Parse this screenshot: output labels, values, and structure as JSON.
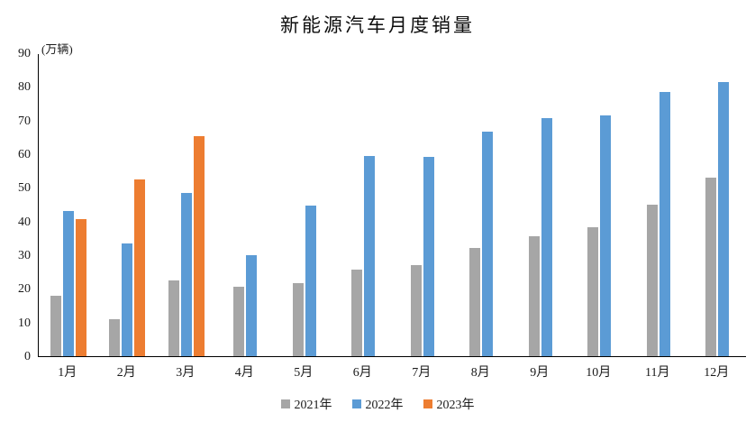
{
  "chart_data": {
    "type": "bar",
    "title": "新能源汽车月度销量",
    "unit_label": "(万辆)",
    "categories": [
      "1月",
      "2月",
      "3月",
      "4月",
      "5月",
      "6月",
      "7月",
      "8月",
      "9月",
      "10月",
      "11月",
      "12月"
    ],
    "series": [
      {
        "name": "2021年",
        "color": "#A6A6A6",
        "values": [
          17.9,
          11.0,
          22.6,
          20.6,
          21.7,
          25.6,
          27.1,
          32.1,
          35.7,
          38.3,
          45.0,
          53.1
        ]
      },
      {
        "name": "2022年",
        "color": "#5B9BD5",
        "values": [
          43.1,
          33.4,
          48.4,
          29.9,
          44.7,
          59.6,
          59.3,
          66.6,
          70.8,
          71.4,
          78.6,
          81.4
        ]
      },
      {
        "name": "2023年",
        "color": "#ED7D31",
        "values": [
          40.8,
          52.5,
          65.3,
          null,
          null,
          null,
          null,
          null,
          null,
          null,
          null,
          null
        ]
      }
    ],
    "ylim": [
      0,
      90
    ],
    "yticks": [
      0,
      10,
      20,
      30,
      40,
      50,
      60,
      70,
      80,
      90
    ],
    "grid": false,
    "legend_position": "bottom",
    "axis_color": "#000000",
    "background_color": "#ffffff"
  }
}
